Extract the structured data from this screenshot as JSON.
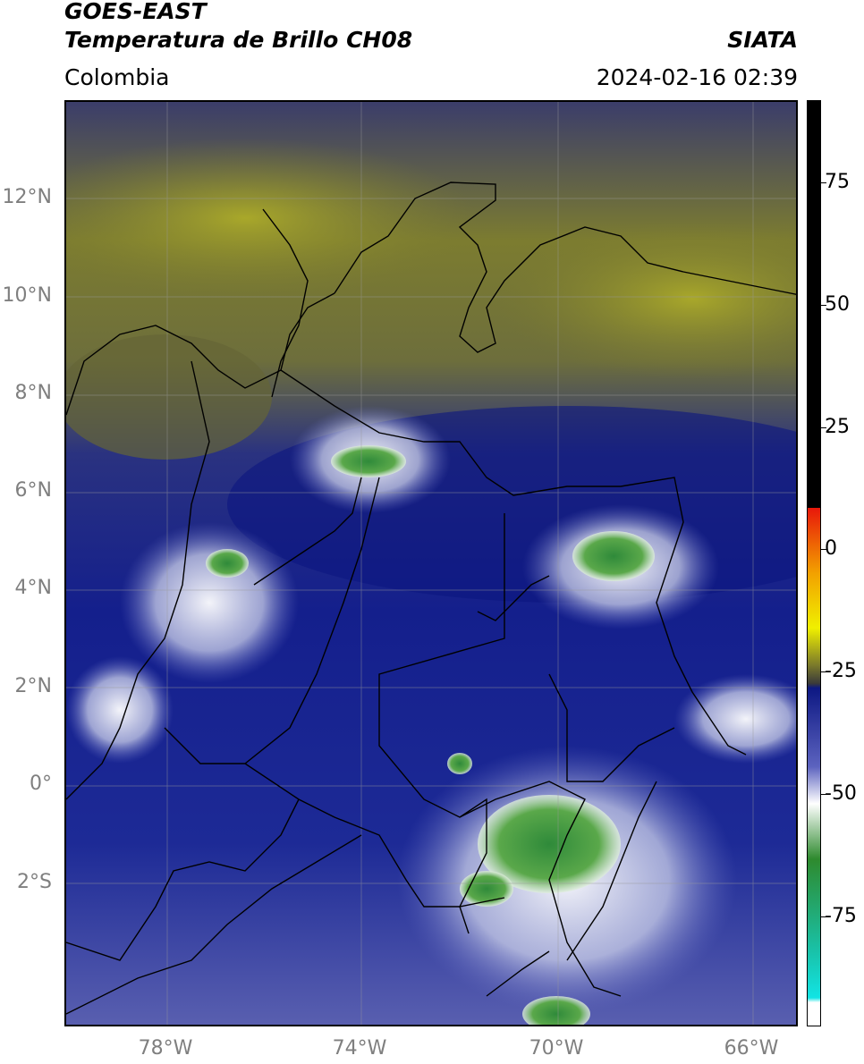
{
  "header": {
    "satellite": "GOES-EAST",
    "product": "Temperatura de Brillo CH08",
    "region": "Colombia",
    "source": "SIATA",
    "timestamp": "2024-02-16 02:39"
  },
  "map": {
    "lat_labels": [
      "12°N",
      "10°N",
      "8°N",
      "6°N",
      "4°N",
      "2°N",
      "0°",
      "2°S"
    ],
    "lon_labels": [
      "78°W",
      "74°W",
      "70°W",
      "66°W"
    ]
  },
  "colorbar": {
    "ticks": [
      "75",
      "50",
      "25",
      "0",
      "-25",
      "-50",
      "-75"
    ],
    "colors": {
      "black": "#000000",
      "red": "#e8170a",
      "orange": "#f2a000",
      "yellow": "#f0f000",
      "olive": "#7b7a2a",
      "navy": "#0d1883",
      "blue": "#5c63bf",
      "white": "#ffffff",
      "green": "#2e8a2e",
      "teal": "#19c2a9",
      "cyan": "#12e4e4"
    }
  }
}
